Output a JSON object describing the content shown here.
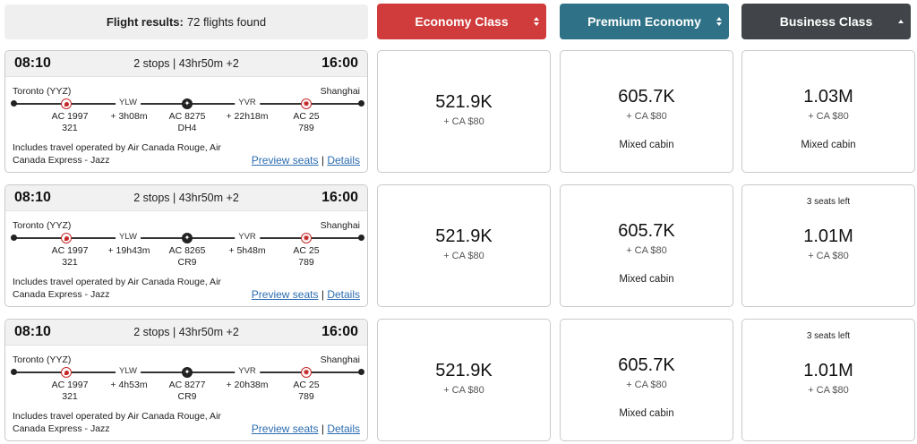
{
  "header": {
    "results_label": "Flight results:",
    "results_count": "72 flights found",
    "economy_label": "Economy Class",
    "premium_label": "Premium Economy",
    "business_label": "Business Class",
    "colors": {
      "economy": "#d03b3b",
      "premium": "#2f7288",
      "business": "#414549"
    }
  },
  "flights": [
    {
      "depart": "08:10",
      "summary": "2 stops | 43hr50m +2",
      "arrive": "16:00",
      "origin": "Toronto (YYZ)",
      "destination": "Shanghai",
      "stop1": "YLW",
      "stop2": "YVR",
      "leg1": {
        "flight": "AC 1997",
        "aircraft": "321"
      },
      "layover1": "+ 3h08m",
      "leg2": {
        "flight": "AC 8275",
        "aircraft": "DH4"
      },
      "layover2": "+ 22h18m",
      "leg3": {
        "flight": "AC 25",
        "aircraft": "789"
      },
      "operated": "Includes travel operated by Air Canada Rouge, Air Canada Express - Jazz",
      "preview": "Preview seats",
      "separator": "|",
      "details": "Details",
      "economy": {
        "price": "521.9K",
        "tax": "+ CA $80",
        "note": "",
        "seats": ""
      },
      "premium": {
        "price": "605.7K",
        "tax": "+ CA $80",
        "note": "Mixed cabin",
        "seats": ""
      },
      "business": {
        "price": "1.03M",
        "tax": "+ CA $80",
        "note": "Mixed cabin",
        "seats": ""
      }
    },
    {
      "depart": "08:10",
      "summary": "2 stops | 43hr50m +2",
      "arrive": "16:00",
      "origin": "Toronto (YYZ)",
      "destination": "Shanghai",
      "stop1": "YLW",
      "stop2": "YVR",
      "leg1": {
        "flight": "AC 1997",
        "aircraft": "321"
      },
      "layover1": "+ 19h43m",
      "leg2": {
        "flight": "AC 8265",
        "aircraft": "CR9"
      },
      "layover2": "+ 5h48m",
      "leg3": {
        "flight": "AC 25",
        "aircraft": "789"
      },
      "operated": "Includes travel operated by Air Canada Rouge, Air Canada Express - Jazz",
      "preview": "Preview seats",
      "separator": "|",
      "details": "Details",
      "economy": {
        "price": "521.9K",
        "tax": "+ CA $80",
        "note": "",
        "seats": ""
      },
      "premium": {
        "price": "605.7K",
        "tax": "+ CA $80",
        "note": "Mixed cabin",
        "seats": ""
      },
      "business": {
        "price": "1.01M",
        "tax": "+ CA $80",
        "note": "",
        "seats": "3 seats left"
      }
    },
    {
      "depart": "08:10",
      "summary": "2 stops | 43hr50m +2",
      "arrive": "16:00",
      "origin": "Toronto (YYZ)",
      "destination": "Shanghai",
      "stop1": "YLW",
      "stop2": "YVR",
      "leg1": {
        "flight": "AC 1997",
        "aircraft": "321"
      },
      "layover1": "+ 4h53m",
      "leg2": {
        "flight": "AC 8277",
        "aircraft": "CR9"
      },
      "layover2": "+ 20h38m",
      "leg3": {
        "flight": "AC 25",
        "aircraft": "789"
      },
      "operated": "Includes travel operated by Air Canada Rouge, Air Canada Express - Jazz",
      "preview": "Preview seats",
      "separator": "|",
      "details": "Details",
      "economy": {
        "price": "521.9K",
        "tax": "+ CA $80",
        "note": "",
        "seats": ""
      },
      "premium": {
        "price": "605.7K",
        "tax": "+ CA $80",
        "note": "Mixed cabin",
        "seats": ""
      },
      "business": {
        "price": "1.01M",
        "tax": "+ CA $80",
        "note": "",
        "seats": "3 seats left"
      }
    }
  ]
}
